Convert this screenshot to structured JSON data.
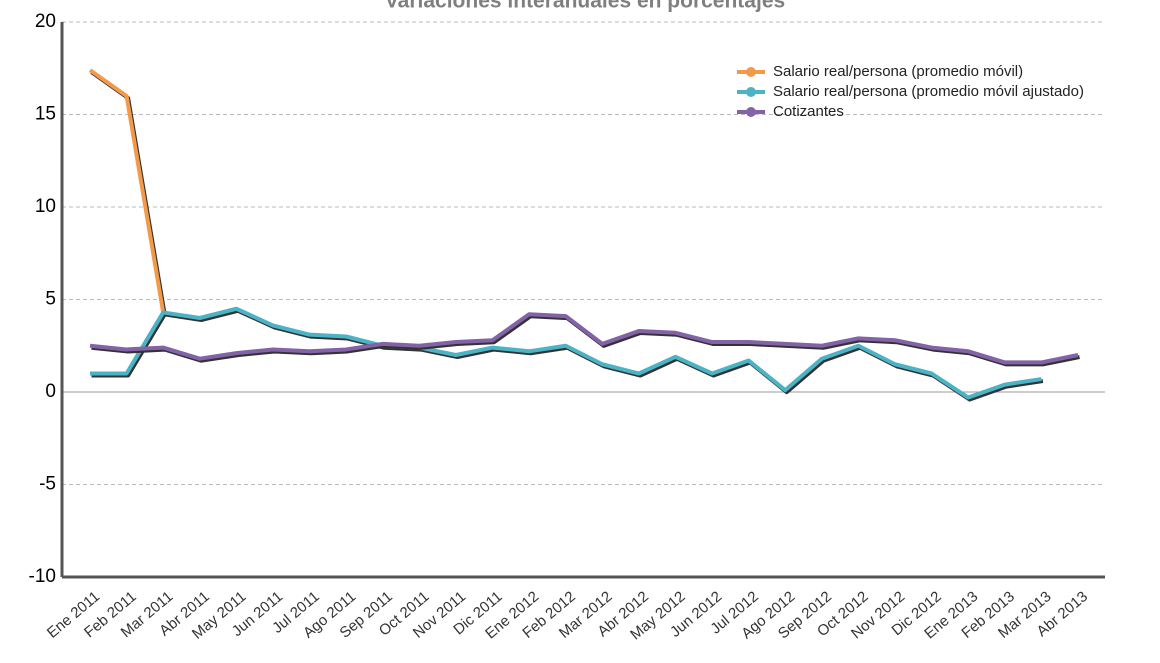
{
  "chart_data": {
    "type": "line",
    "title": "Variaciones interanuales en porcentajes",
    "categories": [
      "Ene 2011",
      "Feb 2011",
      "Mar 2011",
      "Abr 2011",
      "May 2011",
      "Jun 2011",
      "Jul 2011",
      "Ago 2011",
      "Sep 2011",
      "Oct 2011",
      "Nov 2011",
      "Dic 2011",
      "Ene 2012",
      "Feb 2012",
      "Mar 2012",
      "Abr 2012",
      "May 2012",
      "Jun 2012",
      "Jul 2012",
      "Ago 2012",
      "Sep 2012",
      "Oct 2012",
      "Nov 2012",
      "Dic 2012",
      "Ene 2013",
      "Feb 2013",
      "Mar 2013",
      "Abr 2013"
    ],
    "series": [
      {
        "name": "Salario real/persona (promedio móvil)",
        "color": "#f39a4a",
        "values": [
          17.4,
          16.0,
          4.3,
          null,
          null,
          null,
          null,
          null,
          null,
          null,
          null,
          null,
          null,
          null,
          null,
          null,
          null,
          null,
          null,
          null,
          null,
          null,
          null,
          null,
          null,
          null,
          null,
          null
        ]
      },
      {
        "name": "Salario real/persona (promedio móvil ajustado)",
        "color": "#4bb3c6",
        "values": [
          1.0,
          1.0,
          4.3,
          4.0,
          4.5,
          3.6,
          3.1,
          3.0,
          2.5,
          2.4,
          2.0,
          2.4,
          2.2,
          2.5,
          1.5,
          1.0,
          1.9,
          1.0,
          1.7,
          0.1,
          1.8,
          2.5,
          1.5,
          1.0,
          -0.3,
          0.4,
          0.7,
          null
        ]
      },
      {
        "name": "Cotizantes",
        "color": "#8462a8",
        "values": [
          2.5,
          2.3,
          2.4,
          1.8,
          2.1,
          2.3,
          2.2,
          2.3,
          2.6,
          2.5,
          2.7,
          2.8,
          4.2,
          4.1,
          2.6,
          3.3,
          3.2,
          2.7,
          2.7,
          2.6,
          2.5,
          2.9,
          2.8,
          2.4,
          2.2,
          1.6,
          1.6,
          2.0
        ]
      }
    ],
    "ylim": [
      -10,
      20
    ],
    "yticks": [
      -10,
      -5,
      0,
      5,
      10,
      15,
      20
    ],
    "grid": true,
    "legend": "upper right"
  }
}
